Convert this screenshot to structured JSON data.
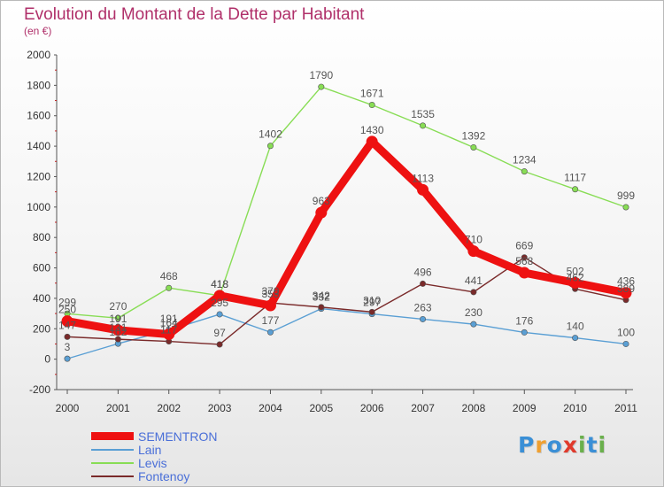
{
  "title": "Evolution du Montant de la Dette par Habitant",
  "subtitle": "(en €)",
  "brand": {
    "text": "Proxiti",
    "letters": [
      "P",
      "r",
      "o",
      "x",
      "i",
      "t",
      "i"
    ],
    "colors": [
      "#3a8fd6",
      "#f0a030",
      "#3a8fd6",
      "#e03a2c",
      "#6ab04c",
      "#3a8fd6",
      "#6ab04c"
    ]
  },
  "chart_data": {
    "type": "line",
    "categories": [
      "2000",
      "2001",
      "2002",
      "2003",
      "2004",
      "2005",
      "2006",
      "2007",
      "2008",
      "2009",
      "2010",
      "2011"
    ],
    "ylim": [
      -200,
      2000
    ],
    "yticks": [
      "-200",
      "0",
      "200",
      "400",
      "600",
      "800",
      "1000",
      "1200",
      "1400",
      "1600",
      "1800",
      "2000"
    ],
    "grid": false,
    "legend_position": "bottom-left",
    "series": [
      {
        "name": "SEMENTRON",
        "color": "#ee1111",
        "values": [
          250,
          191,
          164,
          418,
          353,
          963,
          1430,
          1113,
          710,
          568,
          502,
          436
        ],
        "labels": [
          "250",
          "191",
          "164",
          "418",
          "353",
          "963",
          "1430",
          "1113",
          "710",
          "568",
          "502",
          "436"
        ]
      },
      {
        "name": "Lain",
        "color": "#5a9fd4",
        "values": [
          3,
          102,
          191,
          295,
          177,
          332,
          297,
          263,
          230,
          176,
          140,
          100
        ],
        "labels": [
          "3",
          "102",
          "191",
          "295",
          "177",
          "332",
          "297",
          "263",
          "230",
          "176",
          "140",
          "100"
        ]
      },
      {
        "name": "Levis",
        "color": "#88dd55",
        "values": [
          299,
          270,
          468,
          418,
          1402,
          1790,
          1671,
          1535,
          1392,
          1234,
          1117,
          999
        ],
        "labels": [
          "299",
          "270",
          "468",
          "418",
          "1402",
          "1790",
          "1671",
          "1535",
          "1392",
          "1234",
          "1117",
          "999"
        ]
      },
      {
        "name": "Fontenoy",
        "color": "#7a2a2a",
        "values": [
          147,
          131,
          117,
          97,
          370,
          342,
          310,
          496,
          441,
          669,
          462,
          389
        ],
        "labels": [
          "147",
          "131",
          "117",
          "97",
          "370",
          "342",
          "310",
          "496",
          "441",
          "669",
          "462",
          "389"
        ]
      }
    ]
  }
}
